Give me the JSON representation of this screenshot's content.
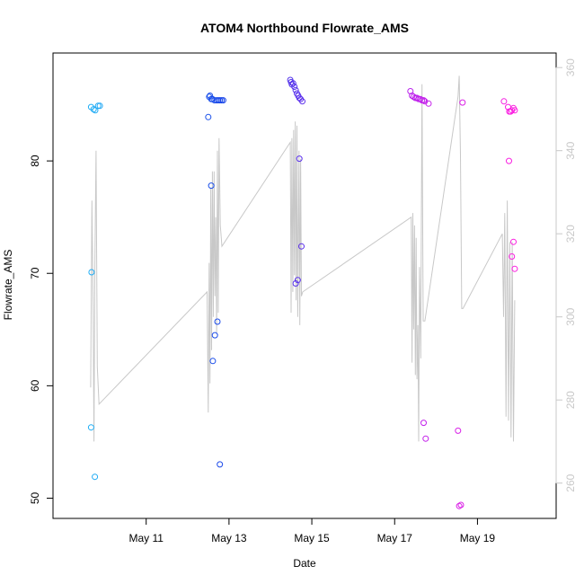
{
  "chart_data": {
    "type": "scatter",
    "title": "ATOM4 Northbound Flowrate_AMS",
    "xlabel": "Date",
    "ylabel": "Flowrate_AMS",
    "x_ticks": [
      "May 11",
      "May 13",
      "May 15",
      "May 17",
      "May 19"
    ],
    "x_tick_positions": [
      11,
      13,
      15,
      17,
      19
    ],
    "xlim": [
      8.75,
      20.9
    ],
    "y_ticks": [
      50,
      60,
      70,
      80
    ],
    "ylim": [
      48.2,
      89.6
    ],
    "y2_ticks": [
      260,
      280,
      300,
      320,
      340,
      360
    ],
    "y2lim": [
      251.5,
      363.5
    ],
    "legend": "none",
    "grid": false,
    "colors": {
      "series_start": "#1fb0f5",
      "series_mid": "#1a3fe8",
      "series_late": "#a321f0",
      "series_end": "#ff1fe0",
      "secondary_line": "#c8c8c8"
    },
    "series": [
      {
        "marker": "open-circle",
        "axis": "left",
        "points": [
          [
            9.67,
            84.8
          ],
          [
            9.73,
            84.6
          ],
          [
            9.77,
            84.5
          ],
          [
            9.84,
            84.9
          ],
          [
            9.88,
            84.9
          ],
          [
            9.68,
            70.1
          ],
          [
            9.67,
            56.3
          ],
          [
            9.76,
            51.9
          ],
          [
            12.5,
            83.9
          ],
          [
            12.52,
            85.7
          ],
          [
            12.54,
            85.8
          ],
          [
            12.57,
            85.5
          ],
          [
            12.6,
            85.5
          ],
          [
            12.65,
            85.4
          ],
          [
            12.7,
            85.4
          ],
          [
            12.74,
            85.4
          ],
          [
            12.78,
            85.4
          ],
          [
            12.82,
            85.4
          ],
          [
            12.86,
            85.4
          ],
          [
            12.57,
            77.8
          ],
          [
            12.72,
            65.7
          ],
          [
            12.66,
            64.5
          ],
          [
            12.61,
            62.2
          ],
          [
            12.78,
            53.0
          ],
          [
            14.48,
            87.2
          ],
          [
            14.5,
            87.0
          ],
          [
            14.52,
            86.8
          ],
          [
            14.55,
            86.9
          ],
          [
            14.58,
            86.6
          ],
          [
            14.61,
            86.3
          ],
          [
            14.64,
            86.0
          ],
          [
            14.67,
            85.8
          ],
          [
            14.7,
            85.6
          ],
          [
            14.73,
            85.5
          ],
          [
            14.77,
            85.3
          ],
          [
            14.7,
            80.2
          ],
          [
            14.75,
            72.4
          ],
          [
            14.66,
            69.4
          ],
          [
            14.61,
            69.1
          ],
          [
            17.38,
            86.2
          ],
          [
            17.42,
            85.8
          ],
          [
            17.46,
            85.7
          ],
          [
            17.5,
            85.6
          ],
          [
            17.54,
            85.6
          ],
          [
            17.58,
            85.5
          ],
          [
            17.62,
            85.5
          ],
          [
            17.66,
            85.4
          ],
          [
            17.7,
            85.4
          ],
          [
            17.73,
            85.3
          ],
          [
            17.82,
            85.1
          ],
          [
            17.7,
            56.7
          ],
          [
            17.75,
            55.3
          ],
          [
            18.53,
            56.0
          ],
          [
            18.56,
            49.3
          ],
          [
            18.6,
            49.4
          ],
          [
            18.64,
            85.2
          ],
          [
            19.64,
            85.3
          ],
          [
            19.74,
            84.8
          ],
          [
            19.77,
            84.4
          ],
          [
            19.8,
            84.4
          ],
          [
            19.83,
            84.5
          ],
          [
            19.87,
            84.7
          ],
          [
            19.9,
            84.5
          ],
          [
            19.76,
            80.0
          ],
          [
            19.83,
            71.5
          ],
          [
            19.87,
            72.8
          ],
          [
            19.9,
            70.4
          ]
        ]
      },
      {
        "name": "",
        "marker": "line",
        "axis": "right",
        "color": "#c8c8c8",
        "points": [
          [
            9.66,
            283
          ],
          [
            9.69,
            328
          ],
          [
            9.72,
            301
          ],
          [
            9.74,
            270
          ],
          [
            9.76,
            312
          ],
          [
            9.79,
            340
          ],
          [
            9.82,
            288
          ],
          [
            9.86,
            279
          ],
          [
            12.47,
            306
          ],
          [
            12.5,
            277
          ],
          [
            12.52,
            313
          ],
          [
            12.54,
            284
          ],
          [
            12.56,
            331
          ],
          [
            12.58,
            292
          ],
          [
            12.6,
            335
          ],
          [
            12.62,
            300
          ],
          [
            12.64,
            335
          ],
          [
            12.66,
            305
          ],
          [
            12.68,
            324
          ],
          [
            12.7,
            296
          ],
          [
            12.72,
            340
          ],
          [
            12.74,
            301
          ],
          [
            12.76,
            343
          ],
          [
            12.79,
            322
          ],
          [
            12.83,
            317
          ],
          [
            14.48,
            342
          ],
          [
            14.5,
            301
          ],
          [
            14.52,
            343
          ],
          [
            14.54,
            306
          ],
          [
            14.56,
            345
          ],
          [
            14.58,
            310
          ],
          [
            14.6,
            347
          ],
          [
            14.62,
            304
          ],
          [
            14.64,
            346
          ],
          [
            14.66,
            300
          ],
          [
            14.69,
            340
          ],
          [
            14.71,
            298
          ],
          [
            14.73,
            338
          ],
          [
            14.75,
            305
          ],
          [
            14.78,
            306
          ],
          [
            17.4,
            324
          ],
          [
            17.42,
            289
          ],
          [
            17.44,
            325
          ],
          [
            17.46,
            297
          ],
          [
            17.48,
            322
          ],
          [
            17.5,
            286
          ],
          [
            17.52,
            319
          ],
          [
            17.54,
            285
          ],
          [
            17.56,
            298
          ],
          [
            17.58,
            270
          ],
          [
            17.6,
            312
          ],
          [
            17.63,
            290
          ],
          [
            17.66,
            356
          ],
          [
            17.69,
            299
          ],
          [
            17.73,
            299
          ],
          [
            18.53,
            353
          ],
          [
            18.56,
            358
          ],
          [
            18.59,
            339
          ],
          [
            18.62,
            302
          ],
          [
            18.65,
            302
          ],
          [
            19.6,
            320
          ],
          [
            19.63,
            300
          ],
          [
            19.66,
            325
          ],
          [
            19.69,
            276
          ],
          [
            19.72,
            328
          ],
          [
            19.75,
            275
          ],
          [
            19.78,
            318
          ],
          [
            19.81,
            271
          ],
          [
            19.84,
            318
          ],
          [
            19.87,
            270
          ],
          [
            19.9,
            304
          ]
        ]
      }
    ]
  }
}
